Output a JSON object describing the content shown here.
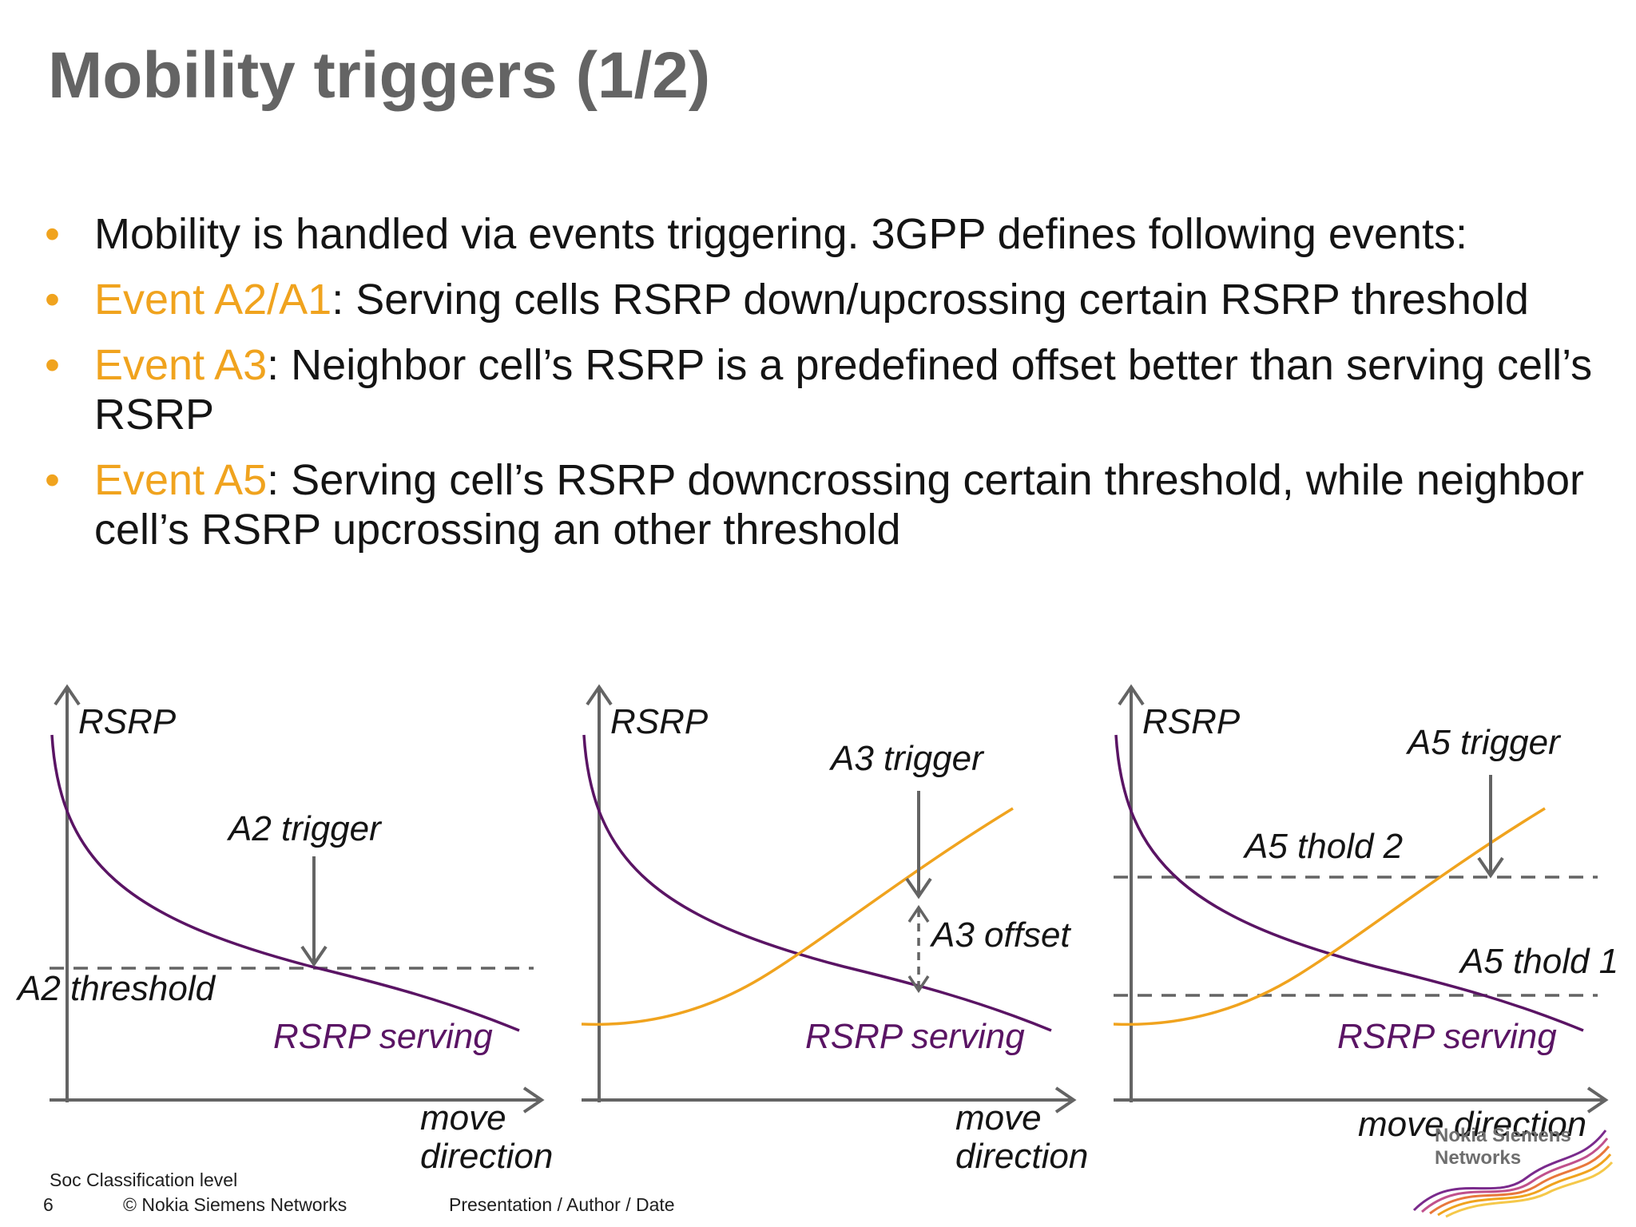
{
  "slide": {
    "title": "Mobility triggers (1/2)",
    "bullets": [
      {
        "highlight": "",
        "text": "Mobility is handled via events triggering. 3GPP defines following events:"
      },
      {
        "highlight": "Event A2/A1",
        "text": ": Serving cells RSRP down/upcrossing certain RSRP threshold"
      },
      {
        "highlight": "Event A3",
        "text": ": Neighbor cell’s RSRP is a predefined offset better than serving cell’s RSRP"
      },
      {
        "highlight": "Event A5",
        "text": ": Serving cell’s RSRP downcrossing certain threshold, while neighbor cell’s RSRP upcrossing an other threshold"
      }
    ]
  },
  "diagrams": {
    "a2": {
      "y_axis_label": "RSRP",
      "x_axis_label_line1": "move",
      "x_axis_label_line2": "direction",
      "trigger_label": "A2 trigger",
      "threshold_label": "A2 threshold",
      "serving_label": "RSRP serving"
    },
    "a3": {
      "y_axis_label": "RSRP",
      "x_axis_label_line1": "move",
      "x_axis_label_line2": "direction",
      "trigger_label": "A3 trigger",
      "offset_label": "A3 offset",
      "serving_label": "RSRP serving"
    },
    "a5": {
      "y_axis_label": "RSRP",
      "x_axis_label": "move direction",
      "trigger_label": "A5 trigger",
      "thold2_label": "A5 thold 2",
      "thold1_label": "A5 thold 1",
      "serving_label": "RSRP serving"
    }
  },
  "footer": {
    "classification": "Soc Classification level",
    "page_number": "6",
    "copyright": "© Nokia Siemens Networks",
    "presentation": "Presentation / Author / Date",
    "logo_line1": "Nokia Siemens",
    "logo_line2": "Networks"
  },
  "colors": {
    "accent_orange": "#f0a31e",
    "serving_purple": "#5a1464",
    "axis_gray": "#646464",
    "title_gray": "#646464"
  }
}
